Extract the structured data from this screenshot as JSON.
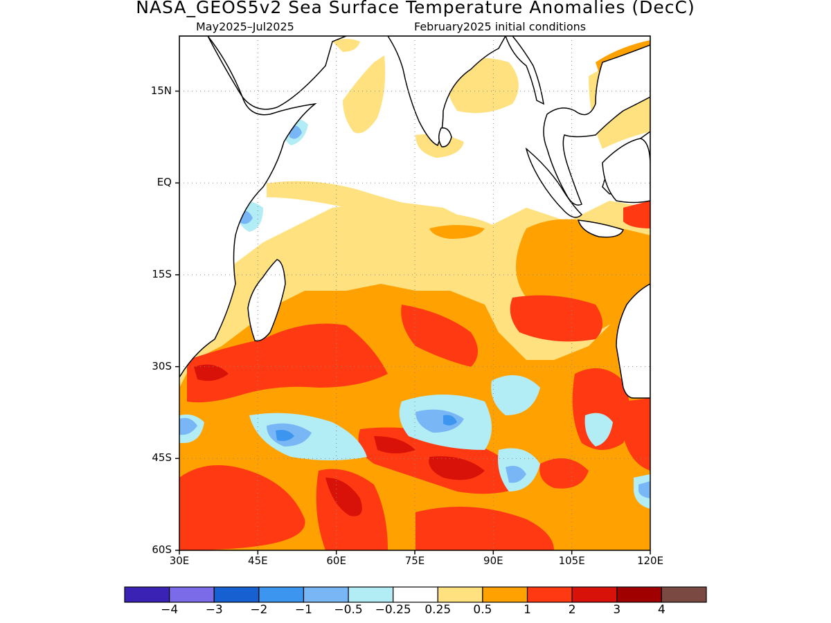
{
  "title": "NASA_GEOS5v2 Sea Surface Temperature Anomalies (DecC)",
  "subtitle_left": "May2025–Jul2025",
  "subtitle_right": "February2025 initial conditions",
  "map": {
    "lon_range": [
      30,
      120
    ],
    "lat_range": [
      -60,
      24
    ],
    "y_ticks": [
      {
        "label": "15N",
        "lat": 15
      },
      {
        "label": "EQ",
        "lat": 0
      },
      {
        "label": "15S",
        "lat": -15
      },
      {
        "label": "30S",
        "lat": -30
      },
      {
        "label": "45S",
        "lat": -45
      },
      {
        "label": "60S",
        "lat": -60
      }
    ],
    "x_ticks": [
      {
        "label": "30E",
        "lon": 30
      },
      {
        "label": "45E",
        "lon": 45
      },
      {
        "label": "60E",
        "lon": 60
      },
      {
        "label": "75E",
        "lon": 75
      },
      {
        "label": "90E",
        "lon": 90
      },
      {
        "label": "105E",
        "lon": 105
      },
      {
        "label": "120E",
        "lon": 120
      }
    ]
  },
  "colorbar": {
    "colors": [
      "#3a22b4",
      "#7b6be8",
      "#1660d2",
      "#3c96f0",
      "#78b6f5",
      "#b2ecf5",
      "#ffffff",
      "#ffe17f",
      "#ffa100",
      "#ff3a13",
      "#d81208",
      "#a00000",
      "#7a4a42"
    ],
    "labels": [
      "−4",
      "−3",
      "−2",
      "−1",
      "−0.5",
      "−0.25",
      "0.25",
      "0.5",
      "1",
      "2",
      "3",
      "4"
    ]
  }
}
